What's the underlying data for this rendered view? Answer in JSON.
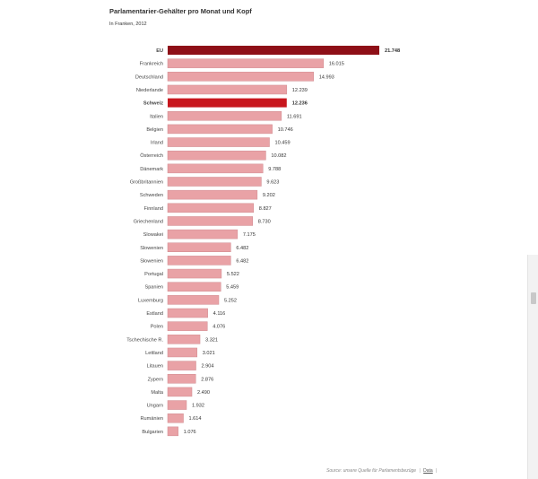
{
  "chart_data": {
    "type": "bar",
    "orientation": "horizontal",
    "title": "Parlamentarier-Gehälter pro Monat und Kopf",
    "subtitle": "In Franken, 2012",
    "categories": [
      "EU",
      "Frankreich",
      "Deutschland",
      "Niederlande",
      "Schweiz",
      "Italien",
      "Belgien",
      "Irland",
      "Österreich",
      "Dänemark",
      "Großbritannien",
      "Schweden",
      "Finnland",
      "Griechenland",
      "Slowakei",
      "Slowenien",
      "Slowenien",
      "Portugal",
      "Spanien",
      "Luxemburg",
      "Estland",
      "Polen",
      "Tschechische R.",
      "Lettland",
      "Litauen",
      "Zypern",
      "Malta",
      "Ungarn",
      "Rumänien",
      "Bulgarien"
    ],
    "values": [
      21748,
      16015,
      14993,
      12239,
      12236,
      11691,
      10746,
      10459,
      10082,
      9788,
      9623,
      9202,
      8827,
      8730,
      7175,
      6482,
      6482,
      5522,
      5459,
      5252,
      4116,
      4076,
      3321,
      3021,
      2904,
      2876,
      2490,
      1932,
      1614,
      1076
    ],
    "value_labels": [
      "21.748",
      "16.015",
      "14.993",
      "12.239",
      "12.236",
      "11.691",
      "10.746",
      "10.459",
      "10.082",
      "9.788",
      "9.623",
      "9.202",
      "8.827",
      "8.730",
      "7.175",
      "6.482",
      "6.482",
      "5.522",
      "5.459",
      "5.252",
      "4.116",
      "4.076",
      "3.321",
      "3.021",
      "2.904",
      "2.876",
      "2.490",
      "1.932",
      "1.614",
      "1.076"
    ],
    "highlighted": [
      "EU",
      "Schweiz"
    ],
    "xlim": [
      0,
      21748
    ],
    "grid": false,
    "legend": "none"
  },
  "colors": {
    "bar": "#e9a2a6",
    "bar_stroke": "#d08a8f",
    "eu_bar": "#8e0f17",
    "swiss_bar": "#c8161d",
    "label_text": "#444444",
    "value_text": "#333333"
  },
  "source": {
    "text": "Source: unsere Quelle für Parlamentsbezüge",
    "link_label": "Data"
  }
}
